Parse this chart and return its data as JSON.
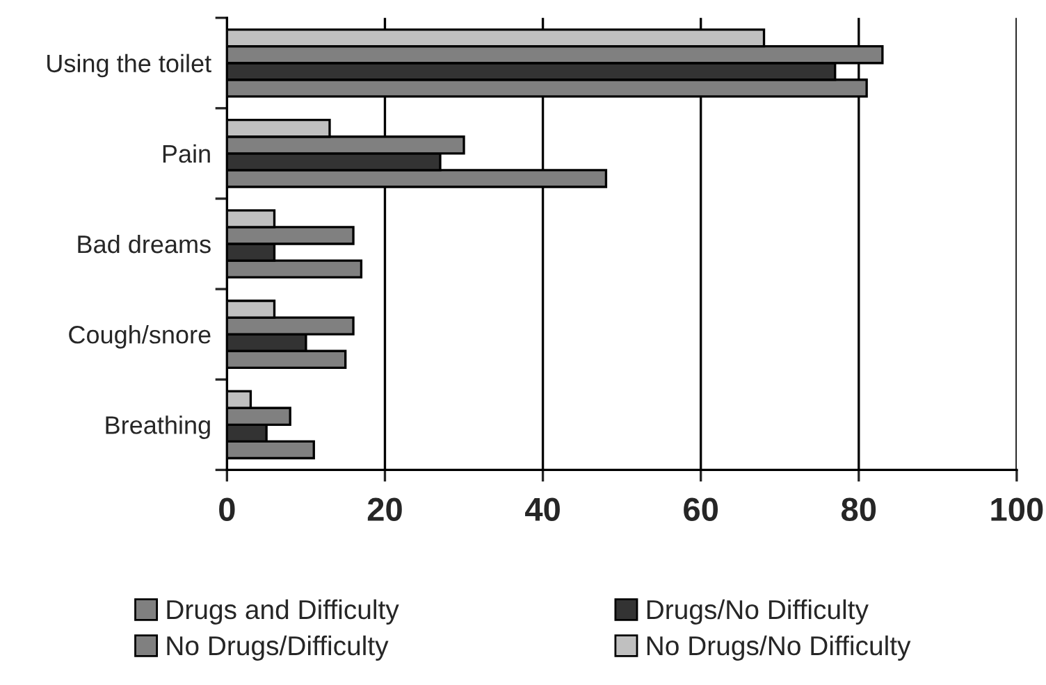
{
  "chart_data": {
    "type": "bar",
    "orientation": "horizontal",
    "categories": [
      "Using the toilet",
      "Pain",
      "Bad dreams",
      "Cough/snore",
      "Breathing"
    ],
    "series": [
      {
        "name": "Drugs and Difficulty",
        "color": "#808080",
        "values": [
          81,
          48,
          17,
          15,
          11
        ]
      },
      {
        "name": "Drugs/No Difficulty",
        "color": "#333333",
        "values": [
          77,
          27,
          6,
          10,
          5
        ]
      },
      {
        "name": "No Drugs/Difficulty",
        "color": "#808080",
        "values": [
          83,
          30,
          16,
          16,
          8
        ]
      },
      {
        "name": "No Drugs/No Difficulty",
        "color": "#c0c0c0",
        "values": [
          68,
          13,
          6,
          6,
          3
        ]
      }
    ],
    "xlim": [
      0,
      100
    ],
    "xticks": [
      0,
      20,
      40,
      60,
      80,
      100
    ],
    "grid": "x",
    "legend": "bottom"
  }
}
